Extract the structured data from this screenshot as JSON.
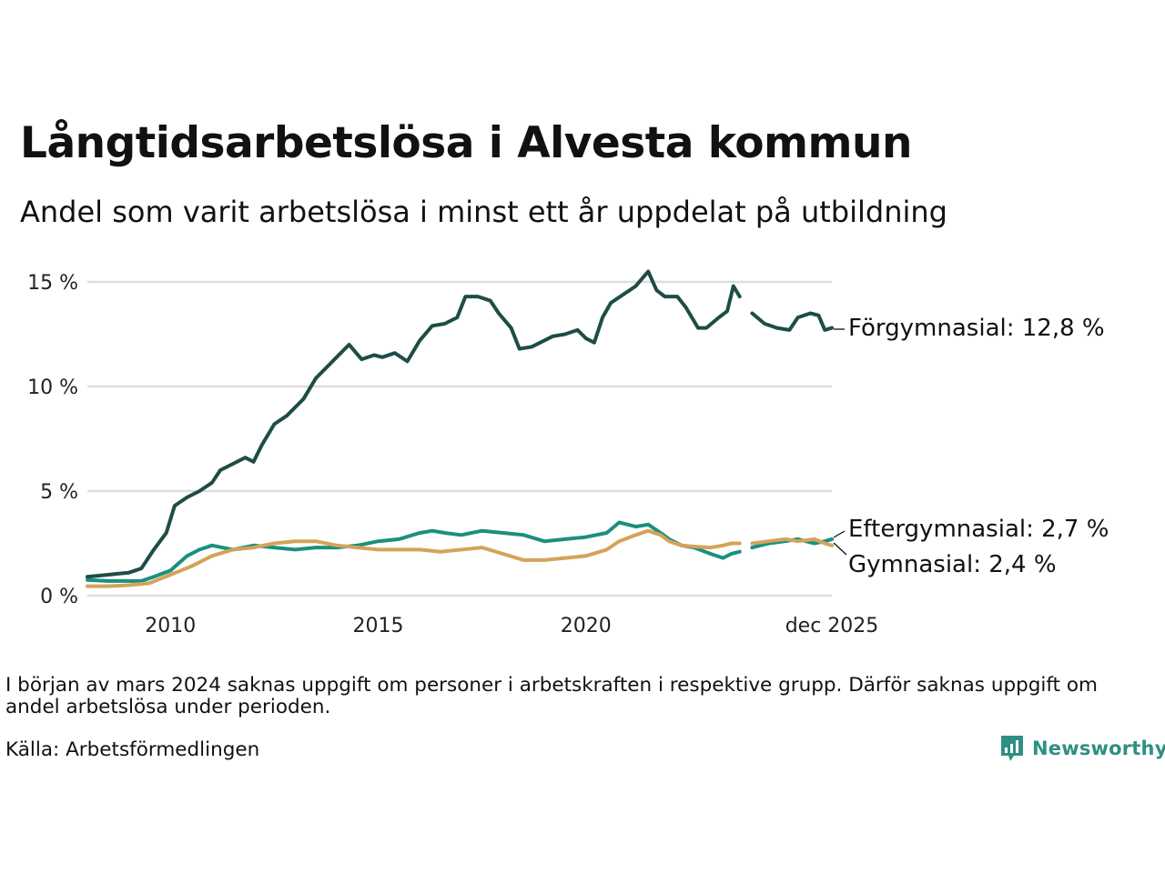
{
  "header": {
    "title": "Långtidsarbetslösa i Alvesta kommun",
    "subtitle": "Andel som varit arbetslösa i minst ett år uppdelat på utbildning"
  },
  "footer": {
    "note": "I början av mars 2024 saknas uppgift om personer i arbetskraften i respektive grupp. Därför saknas uppgift om andel arbetslösa under perioden.",
    "source": "Källa: Arbetsförmedlingen",
    "brand": "Newsworthy"
  },
  "colors": {
    "forgymnasial": "#1e4d46",
    "eftergymnasial": "#1b8f80",
    "gymnasial": "#d4a359",
    "grid": "#dddddd",
    "brand": "#2f8f84"
  },
  "chart_data": {
    "type": "line",
    "title": "Långtidsarbetslösa i Alvesta kommun",
    "xlabel": "",
    "ylabel": "",
    "xlim": [
      2008.0,
      2025.92
    ],
    "ylim": [
      0,
      15
    ],
    "yticks": [
      0,
      5,
      10,
      15
    ],
    "ytick_labels": [
      "0 %",
      "5 %",
      "10 %",
      "15 %"
    ],
    "xticks": [
      2010,
      2015,
      2020,
      2025.92
    ],
    "xtick_labels": [
      "2010",
      "2015",
      "2020",
      "dec 2025"
    ],
    "gap": [
      2023.75,
      2024.0
    ],
    "series": [
      {
        "name": "Förgymnasial",
        "end_label": "Förgymnasial: 12,8 %",
        "color_key": "forgymnasial",
        "points": [
          [
            2008.0,
            0.9
          ],
          [
            2008.5,
            1.0
          ],
          [
            2009.0,
            1.1
          ],
          [
            2009.3,
            1.3
          ],
          [
            2009.6,
            2.2
          ],
          [
            2009.9,
            3.0
          ],
          [
            2010.1,
            4.3
          ],
          [
            2010.4,
            4.7
          ],
          [
            2010.7,
            5.0
          ],
          [
            2011.0,
            5.4
          ],
          [
            2011.2,
            6.0
          ],
          [
            2011.5,
            6.3
          ],
          [
            2011.8,
            6.6
          ],
          [
            2012.0,
            6.4
          ],
          [
            2012.2,
            7.2
          ],
          [
            2012.5,
            8.2
          ],
          [
            2012.8,
            8.6
          ],
          [
            2013.0,
            9.0
          ],
          [
            2013.2,
            9.4
          ],
          [
            2013.5,
            10.4
          ],
          [
            2013.8,
            11.0
          ],
          [
            2014.1,
            11.6
          ],
          [
            2014.3,
            12.0
          ],
          [
            2014.6,
            11.3
          ],
          [
            2014.9,
            11.5
          ],
          [
            2015.1,
            11.4
          ],
          [
            2015.4,
            11.6
          ],
          [
            2015.7,
            11.2
          ],
          [
            2016.0,
            12.2
          ],
          [
            2016.3,
            12.9
          ],
          [
            2016.6,
            13.0
          ],
          [
            2016.9,
            13.3
          ],
          [
            2017.1,
            14.3
          ],
          [
            2017.4,
            14.3
          ],
          [
            2017.7,
            14.1
          ],
          [
            2017.9,
            13.5
          ],
          [
            2018.2,
            12.8
          ],
          [
            2018.4,
            11.8
          ],
          [
            2018.7,
            11.9
          ],
          [
            2018.9,
            12.1
          ],
          [
            2019.2,
            12.4
          ],
          [
            2019.5,
            12.5
          ],
          [
            2019.8,
            12.7
          ],
          [
            2020.0,
            12.3
          ],
          [
            2020.2,
            12.1
          ],
          [
            2020.4,
            13.3
          ],
          [
            2020.6,
            14.0
          ],
          [
            2020.9,
            14.4
          ],
          [
            2021.2,
            14.8
          ],
          [
            2021.5,
            15.5
          ],
          [
            2021.7,
            14.6
          ],
          [
            2021.9,
            14.3
          ],
          [
            2022.2,
            14.3
          ],
          [
            2022.4,
            13.8
          ],
          [
            2022.7,
            12.8
          ],
          [
            2022.9,
            12.8
          ],
          [
            2023.2,
            13.3
          ],
          [
            2023.4,
            13.6
          ],
          [
            2023.55,
            14.8
          ],
          [
            2023.7,
            14.3
          ],
          null,
          [
            2024.0,
            13.5
          ],
          [
            2024.3,
            13.0
          ],
          [
            2024.6,
            12.8
          ],
          [
            2024.9,
            12.7
          ],
          [
            2025.1,
            13.3
          ],
          [
            2025.4,
            13.5
          ],
          [
            2025.6,
            13.4
          ],
          [
            2025.75,
            12.7
          ],
          [
            2025.92,
            12.8
          ]
        ]
      },
      {
        "name": "Eftergymnasial",
        "end_label": "Eftergymnasial:  2,7 %",
        "color_key": "eftergymnasial",
        "points": [
          [
            2008.0,
            0.75
          ],
          [
            2008.5,
            0.7
          ],
          [
            2009.0,
            0.7
          ],
          [
            2009.3,
            0.7
          ],
          [
            2009.6,
            0.9
          ],
          [
            2010.0,
            1.2
          ],
          [
            2010.4,
            1.9
          ],
          [
            2010.7,
            2.2
          ],
          [
            2011.0,
            2.4
          ],
          [
            2011.5,
            2.2
          ],
          [
            2012.0,
            2.4
          ],
          [
            2012.5,
            2.3
          ],
          [
            2013.0,
            2.2
          ],
          [
            2013.5,
            2.3
          ],
          [
            2014.0,
            2.3
          ],
          [
            2014.5,
            2.4
          ],
          [
            2015.0,
            2.6
          ],
          [
            2015.5,
            2.7
          ],
          [
            2016.0,
            3.0
          ],
          [
            2016.3,
            3.1
          ],
          [
            2016.6,
            3.0
          ],
          [
            2017.0,
            2.9
          ],
          [
            2017.5,
            3.1
          ],
          [
            2018.0,
            3.0
          ],
          [
            2018.5,
            2.9
          ],
          [
            2019.0,
            2.6
          ],
          [
            2019.5,
            2.7
          ],
          [
            2020.0,
            2.8
          ],
          [
            2020.5,
            3.0
          ],
          [
            2020.8,
            3.5
          ],
          [
            2021.2,
            3.3
          ],
          [
            2021.5,
            3.4
          ],
          [
            2021.8,
            3.0
          ],
          [
            2022.0,
            2.7
          ],
          [
            2022.3,
            2.4
          ],
          [
            2022.6,
            2.3
          ],
          [
            2023.0,
            2.0
          ],
          [
            2023.3,
            1.8
          ],
          [
            2023.5,
            2.0
          ],
          [
            2023.7,
            2.1
          ],
          null,
          [
            2024.0,
            2.3
          ],
          [
            2024.4,
            2.5
          ],
          [
            2024.8,
            2.6
          ],
          [
            2025.1,
            2.7
          ],
          [
            2025.5,
            2.5
          ],
          [
            2025.75,
            2.6
          ],
          [
            2025.92,
            2.7
          ]
        ]
      },
      {
        "name": "Gymnasial",
        "end_label": "Gymnasial:  2,4 %",
        "color_key": "gymnasial",
        "points": [
          [
            2008.0,
            0.45
          ],
          [
            2008.5,
            0.45
          ],
          [
            2009.0,
            0.5
          ],
          [
            2009.5,
            0.6
          ],
          [
            2010.0,
            1.0
          ],
          [
            2010.5,
            1.4
          ],
          [
            2011.0,
            1.9
          ],
          [
            2011.5,
            2.2
          ],
          [
            2012.0,
            2.3
          ],
          [
            2012.5,
            2.5
          ],
          [
            2013.0,
            2.6
          ],
          [
            2013.5,
            2.6
          ],
          [
            2014.0,
            2.4
          ],
          [
            2014.5,
            2.3
          ],
          [
            2015.0,
            2.2
          ],
          [
            2015.5,
            2.2
          ],
          [
            2016.0,
            2.2
          ],
          [
            2016.5,
            2.1
          ],
          [
            2017.0,
            2.2
          ],
          [
            2017.5,
            2.3
          ],
          [
            2018.0,
            2.0
          ],
          [
            2018.5,
            1.7
          ],
          [
            2019.0,
            1.7
          ],
          [
            2019.5,
            1.8
          ],
          [
            2020.0,
            1.9
          ],
          [
            2020.5,
            2.2
          ],
          [
            2020.8,
            2.6
          ],
          [
            2021.2,
            2.9
          ],
          [
            2021.5,
            3.1
          ],
          [
            2021.8,
            2.9
          ],
          [
            2022.0,
            2.6
          ],
          [
            2022.3,
            2.4
          ],
          [
            2022.6,
            2.35
          ],
          [
            2023.0,
            2.3
          ],
          [
            2023.3,
            2.4
          ],
          [
            2023.5,
            2.5
          ],
          [
            2023.7,
            2.5
          ],
          null,
          [
            2024.0,
            2.5
          ],
          [
            2024.4,
            2.6
          ],
          [
            2024.8,
            2.7
          ],
          [
            2025.1,
            2.6
          ],
          [
            2025.5,
            2.7
          ],
          [
            2025.75,
            2.5
          ],
          [
            2025.92,
            2.4
          ]
        ]
      }
    ]
  }
}
